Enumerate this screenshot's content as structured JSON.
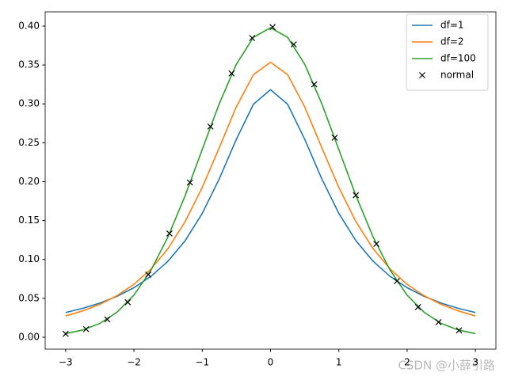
{
  "chart_data": {
    "type": "line",
    "x": [
      -3,
      -2.75,
      -2.5,
      -2.25,
      -2,
      -1.75,
      -1.5,
      -1.25,
      -1,
      -0.75,
      -0.5,
      -0.25,
      0,
      0.25,
      0.5,
      0.75,
      1,
      1.25,
      1.5,
      1.75,
      2,
      2.25,
      2.5,
      2.75,
      3
    ],
    "series": [
      {
        "name": "df=1",
        "color": "#1f77b4",
        "values": [
          0.0318,
          0.0371,
          0.0439,
          0.0525,
          0.0637,
          0.0783,
          0.0979,
          0.1241,
          0.1592,
          0.2037,
          0.2546,
          0.2996,
          0.3183,
          0.2996,
          0.2546,
          0.2037,
          0.1592,
          0.1241,
          0.0979,
          0.0783,
          0.0637,
          0.0525,
          0.0439,
          0.0371,
          0.0318
        ]
      },
      {
        "name": "df=2",
        "color": "#ff7f0e",
        "values": [
          0.0274,
          0.0338,
          0.0422,
          0.0533,
          0.068,
          0.0878,
          0.1141,
          0.1487,
          0.1925,
          0.2438,
          0.2963,
          0.3376,
          0.3536,
          0.3376,
          0.2963,
          0.2438,
          0.1925,
          0.1487,
          0.1141,
          0.0878,
          0.068,
          0.0533,
          0.0422,
          0.0338,
          0.0274
        ]
      },
      {
        "name": "df=100",
        "color": "#2ca02c",
        "values": [
          0.0046,
          0.0093,
          0.0177,
          0.032,
          0.0541,
          0.0863,
          0.1293,
          0.1821,
          0.2413,
          0.3004,
          0.3511,
          0.3856,
          0.3979,
          0.3856,
          0.3511,
          0.3004,
          0.2413,
          0.1821,
          0.1293,
          0.0863,
          0.0541,
          0.032,
          0.0177,
          0.0093,
          0.0046
        ]
      },
      {
        "name": "normal",
        "color": "#000000",
        "marker": "x",
        "x": [
          -3,
          -2.7,
          -2.39,
          -2.09,
          -1.79,
          -1.48,
          -1.18,
          -0.88,
          -0.57,
          -0.27,
          0.03,
          0.34,
          0.64,
          0.94,
          1.25,
          1.55,
          1.85,
          2.16,
          2.46,
          2.76
        ],
        "values": [
          0.0044,
          0.0104,
          0.0229,
          0.0449,
          0.0804,
          0.1334,
          0.1989,
          0.2709,
          0.3391,
          0.3847,
          0.3988,
          0.3765,
          0.3251,
          0.2565,
          0.1826,
          0.12,
          0.0721,
          0.0387,
          0.0194,
          0.0088
        ]
      }
    ],
    "xlim": [
      -3.3,
      3.3
    ],
    "ylim": [
      -0.0153,
      0.4183
    ],
    "xticks": [
      {
        "value": -3,
        "label": "−3"
      },
      {
        "value": -2,
        "label": "−2"
      },
      {
        "value": -1,
        "label": "−1"
      },
      0,
      1,
      2,
      3
    ],
    "yticks": [
      {
        "value": 0,
        "label": "0.00"
      },
      {
        "value": 0.05,
        "label": "0.05"
      },
      {
        "value": 0.1,
        "label": "0.10"
      },
      {
        "value": 0.15,
        "label": "0.15"
      },
      {
        "value": 0.2,
        "label": "0.20"
      },
      {
        "value": 0.25,
        "label": "0.25"
      },
      {
        "value": 0.3,
        "label": "0.30"
      },
      {
        "value": 0.35,
        "label": "0.35"
      },
      {
        "value": 0.4,
        "label": "0.40"
      }
    ],
    "legend": "upper right",
    "watermark": "CSDN @小薛引路"
  }
}
